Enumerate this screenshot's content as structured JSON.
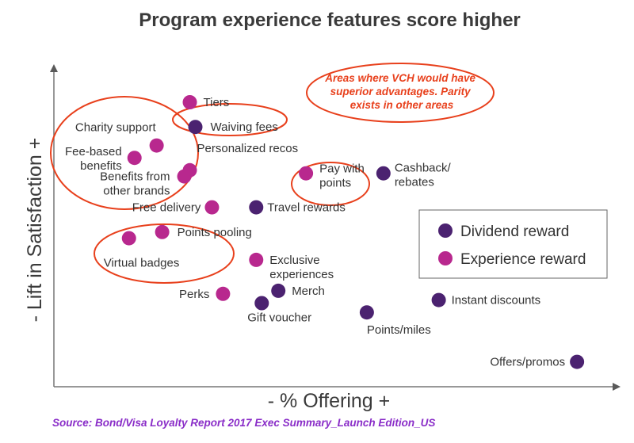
{
  "chart_data": {
    "type": "scatter",
    "title": "Program experience features score higher",
    "xlabel": "- % Offering +",
    "ylabel": "- Lift in Satisfaction +",
    "xlim": [
      0,
      100
    ],
    "ylim": [
      0,
      100
    ],
    "grid": false,
    "legend_position": "right",
    "series": [
      {
        "name": "Dividend reward",
        "color": "#4b2270",
        "points": [
          {
            "label": "Waiving fees",
            "x": 25,
            "y": 82
          },
          {
            "label": "Cashback/ rebates",
            "x": 59,
            "y": 67
          },
          {
            "label": "Travel rewards",
            "x": 36,
            "y": 56
          },
          {
            "label": "Merch",
            "x": 40,
            "y": 29
          },
          {
            "label": "Gift voucher",
            "x": 37,
            "y": 25
          },
          {
            "label": "Instant discounts",
            "x": 69,
            "y": 26
          },
          {
            "label": "Points/miles",
            "x": 56,
            "y": 22
          },
          {
            "label": "Offers/promos",
            "x": 94,
            "y": 6
          }
        ]
      },
      {
        "name": "Experience reward",
        "color": "#b8288e",
        "points": [
          {
            "label": "Tiers",
            "x": 24,
            "y": 90
          },
          {
            "label": "Charity support",
            "x": 18,
            "y": 76
          },
          {
            "label": "Fee-based benefits",
            "x": 14,
            "y": 72
          },
          {
            "label": "Personalized recos",
            "x": 24,
            "y": 68
          },
          {
            "label": "Benefits from other brands",
            "x": 23,
            "y": 66
          },
          {
            "label": "Pay with points",
            "x": 45,
            "y": 67
          },
          {
            "label": "Free delivery",
            "x": 28,
            "y": 56
          },
          {
            "label": "Points pooling",
            "x": 19,
            "y": 48
          },
          {
            "label": "Virtual badges",
            "x": 13,
            "y": 46
          },
          {
            "label": "Exclusive experiences",
            "x": 36,
            "y": 39
          },
          {
            "label": "Perks",
            "x": 30,
            "y": 28
          }
        ]
      }
    ],
    "callout": [
      "Areas where VCH would have",
      "superior advantages. Parity",
      "exists in other areas"
    ]
  },
  "source": "Source: Bond/Visa Loyalty Report 2017 Exec Summary_Launch Edition_US"
}
